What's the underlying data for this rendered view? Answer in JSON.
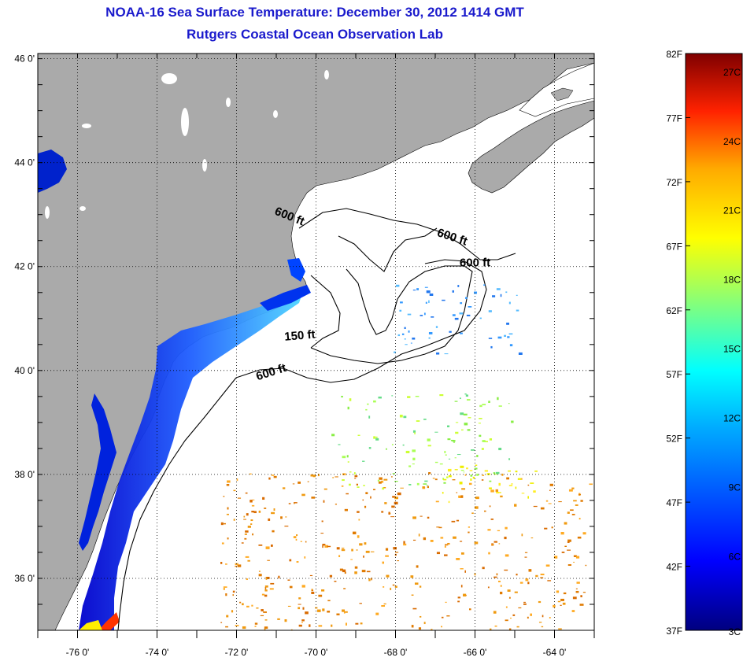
{
  "title": "NOAA-16 Sea Surface Temperature:  December 30, 2012 1414 GMT",
  "subtitle": "Rutgers Coastal Ocean Observation Lab",
  "lat_ticks": [
    "46 0'",
    "44 0'",
    "42 0'",
    "40 0'",
    "38 0'",
    "36 0'"
  ],
  "lon_ticks": [
    "-76 0'",
    "-74 0'",
    "-72 0'",
    "-70 0'",
    "-68 0'",
    "-66 0'",
    "-64 0'"
  ],
  "lat_values": [
    46,
    44,
    42,
    40,
    38,
    36
  ],
  "lon_values": [
    -76,
    -74,
    -72,
    -70,
    -68,
    -66,
    -64
  ],
  "extent": {
    "lon_min": -77,
    "lon_max": -63,
    "lat_min": 35,
    "lat_max": 46.1
  },
  "contour_labels": [
    {
      "text": "600 ft",
      "lon": -70.7,
      "lat": 42.9,
      "rot": 22
    },
    {
      "text": "600 ft",
      "lon": -66.6,
      "lat": 42.5,
      "rot": 18
    },
    {
      "text": "600 ft",
      "lon": -66.0,
      "lat": 42.0,
      "rot": 0
    },
    {
      "text": "150 ft",
      "lon": -70.4,
      "lat": 40.6,
      "rot": -5
    },
    {
      "text": "600 ft",
      "lon": -71.1,
      "lat": 39.9,
      "rot": -18
    }
  ],
  "colorbar": {
    "fahrenheit": [
      "82F",
      "77F",
      "72F",
      "67F",
      "62F",
      "57F",
      "52F",
      "47F",
      "42F",
      "37F"
    ],
    "celsius": [
      "27C",
      "24C",
      "21C",
      "18C",
      "15C",
      "12C",
      "9C",
      "6C",
      "3C"
    ],
    "min_f": 37,
    "max_f": 82,
    "colors": [
      "#00007f",
      "#0000ff",
      "#007fff",
      "#00ffff",
      "#7fff7f",
      "#ffff00",
      "#ff7f00",
      "#ff0000",
      "#7f0000"
    ]
  },
  "colors": {
    "land": "#aaaaaa",
    "title": "#1a1acc",
    "grid": "#000000"
  }
}
